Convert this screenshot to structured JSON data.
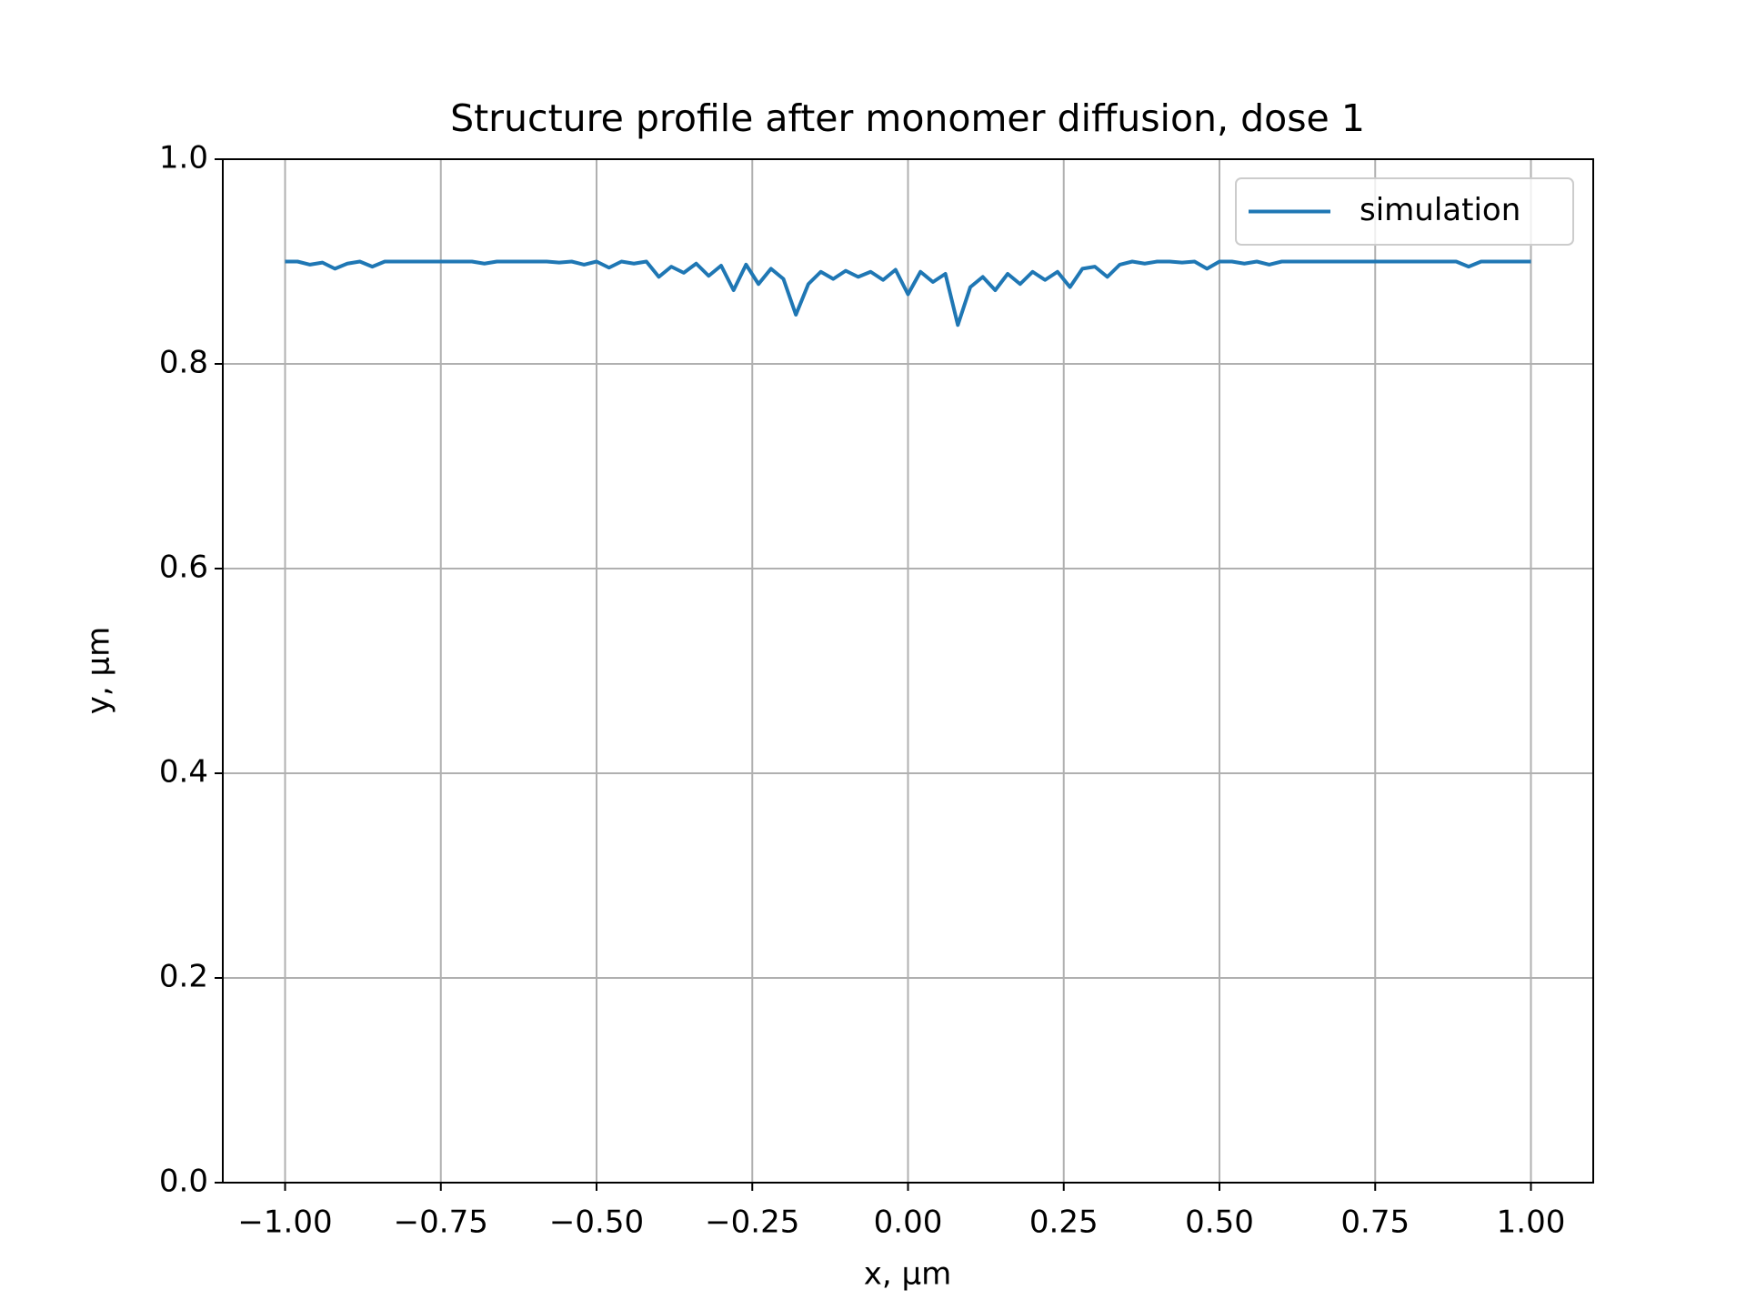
{
  "chart_data": {
    "type": "line",
    "title": "Structure profile after monomer diffusion, dose 1",
    "x_label": "x, μm",
    "y_label": "y, μm",
    "x": [
      -1,
      -0.98,
      -0.96,
      -0.94,
      -0.92,
      -0.9,
      -0.88,
      -0.86,
      -0.84,
      -0.82,
      -0.8,
      -0.78,
      -0.76,
      -0.74,
      -0.72,
      -0.7,
      -0.68,
      -0.66,
      -0.64,
      -0.62,
      -0.6,
      -0.58,
      -0.56,
      -0.54,
      -0.52,
      -0.5,
      -0.48,
      -0.46,
      -0.44,
      -0.42,
      -0.4,
      -0.38,
      -0.36,
      -0.34,
      -0.32,
      -0.3,
      -0.28,
      -0.26,
      -0.24,
      -0.22,
      -0.2,
      -0.18,
      -0.16,
      -0.14,
      -0.12,
      -0.1,
      -0.08,
      -0.06,
      -0.04,
      -0.02,
      0,
      0.02,
      0.04,
      0.06,
      0.08,
      0.1,
      0.12,
      0.14,
      0.16,
      0.18,
      0.2,
      0.22,
      0.24,
      0.26,
      0.28,
      0.3,
      0.32,
      0.34,
      0.36,
      0.38,
      0.4,
      0.42,
      0.44,
      0.46,
      0.48,
      0.5,
      0.52,
      0.54,
      0.56,
      0.58,
      0.6,
      0.62,
      0.64,
      0.66,
      0.68,
      0.7,
      0.72,
      0.74,
      0.76,
      0.78,
      0.8,
      0.82,
      0.84,
      0.86,
      0.88,
      0.9,
      0.92,
      0.94,
      0.96,
      0.98,
      1
    ],
    "series": [
      {
        "name": "simulation",
        "color": "#1f77b4",
        "values": [
          0.9,
          0.9,
          0.897,
          0.899,
          0.893,
          0.898,
          0.9,
          0.895,
          0.9,
          0.9,
          0.9,
          0.9,
          0.9,
          0.9,
          0.9,
          0.9,
          0.898,
          0.9,
          0.9,
          0.9,
          0.9,
          0.9,
          0.899,
          0.9,
          0.897,
          0.9,
          0.894,
          0.9,
          0.898,
          0.9,
          0.885,
          0.895,
          0.889,
          0.898,
          0.886,
          0.896,
          0.872,
          0.897,
          0.878,
          0.893,
          0.883,
          0.848,
          0.878,
          0.89,
          0.883,
          0.891,
          0.885,
          0.89,
          0.882,
          0.892,
          0.868,
          0.89,
          0.88,
          0.888,
          0.838,
          0.875,
          0.885,
          0.872,
          0.888,
          0.878,
          0.89,
          0.882,
          0.89,
          0.875,
          0.893,
          0.895,
          0.885,
          0.897,
          0.9,
          0.898,
          0.9,
          0.9,
          0.899,
          0.9,
          0.893,
          0.9,
          0.9,
          0.898,
          0.9,
          0.897,
          0.9,
          0.9,
          0.9,
          0.9,
          0.9,
          0.9,
          0.9,
          0.9,
          0.9,
          0.9,
          0.9,
          0.9,
          0.9,
          0.9,
          0.9,
          0.895,
          0.9,
          0.9,
          0.9,
          0.9,
          0.9
        ]
      }
    ],
    "xlim": [
      -1.1,
      1.1
    ],
    "ylim": [
      0,
      1
    ],
    "xticks": [
      {
        "value": -1,
        "label": "−1.00"
      },
      {
        "value": -0.75,
        "label": "−0.75"
      },
      {
        "value": -0.5,
        "label": "−0.50"
      },
      {
        "value": -0.25,
        "label": "−0.25"
      },
      {
        "value": 0,
        "label": "0.00"
      },
      {
        "value": 0.25,
        "label": "0.25"
      },
      {
        "value": 0.5,
        "label": "0.50"
      },
      {
        "value": 0.75,
        "label": "0.75"
      },
      {
        "value": 1,
        "label": "1.00"
      }
    ],
    "yticks": [
      {
        "value": 0,
        "label": "0.0"
      },
      0.2,
      0.4,
      0.6,
      0.8,
      {
        "value": 1,
        "label": "1.0"
      }
    ],
    "grid": true,
    "legend": "upper right"
  }
}
